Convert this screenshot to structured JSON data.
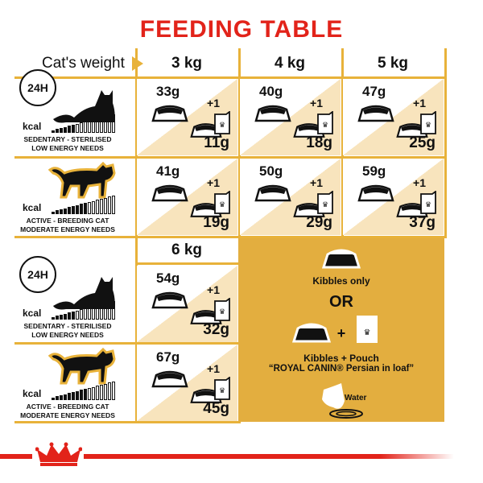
{
  "title": "FEEDING TABLE",
  "weight_label": "Cat's weight",
  "weights": [
    "3 kg",
    "4 kg",
    "5 kg",
    "6 kg"
  ],
  "clock_label": "24H",
  "kcal_label": "kcal",
  "profiles": [
    {
      "line1": "SEDENTARY - STERILISED",
      "line2": "LOW ENERGY NEEDS",
      "cat_color": "#111"
    },
    {
      "line1": "ACTIVE - BREEDING CAT",
      "line2": "MODERATE ENERGY NEEDS",
      "cat_color": "#e8b23a"
    }
  ],
  "plus_one": "+1",
  "rows": [
    [
      {
        "dry": "33g",
        "wet": "11g"
      },
      {
        "dry": "40g",
        "wet": "18g"
      },
      {
        "dry": "47g",
        "wet": "25g"
      }
    ],
    [
      {
        "dry": "41g",
        "wet": "19g"
      },
      {
        "dry": "50g",
        "wet": "29g"
      },
      {
        "dry": "59g",
        "wet": "37g"
      }
    ],
    [
      {
        "dry": "54g",
        "wet": "32g"
      }
    ],
    [
      {
        "dry": "67g",
        "wet": "45g"
      }
    ]
  ],
  "legend": {
    "kibbles_only": "Kibbles only",
    "or": "OR",
    "plus": "+",
    "kibbles_pouch": "Kibbles + Pouch",
    "product": "“ROYAL CANIN® Persian in loaf”",
    "water": "Water"
  },
  "colors": {
    "accent": "#e8b23a",
    "cream": "#f8e4bd",
    "brand_red": "#e2231a",
    "legend_bg": "#e3ae3f"
  }
}
